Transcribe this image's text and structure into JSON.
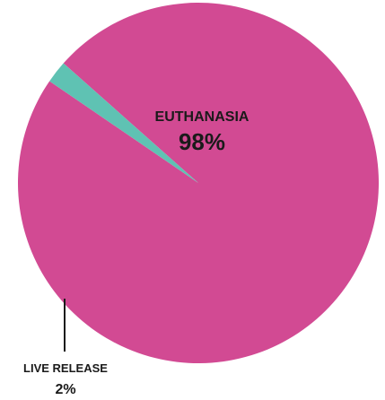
{
  "chart_data": {
    "type": "pie",
    "slices": [
      {
        "label": "EUTHANASIA",
        "value_label": "98%",
        "value": 98,
        "color": "#d24a93"
      },
      {
        "label": "LIVE RELEASE",
        "value_label": "2%",
        "value": 2,
        "color": "#5fc2b3"
      }
    ],
    "leader_line_color": "#1a1a1a",
    "legend": "none",
    "grid": false
  }
}
